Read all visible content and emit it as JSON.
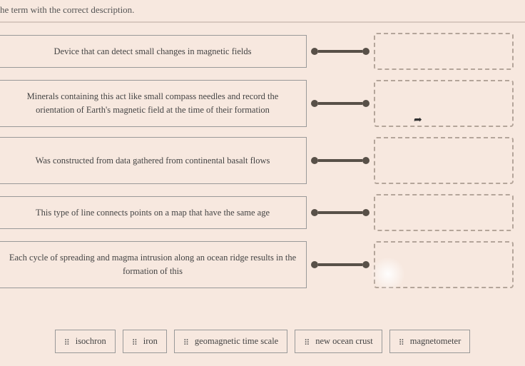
{
  "instruction": "he term with the correct description.",
  "descriptions": [
    "Device that can detect small changes in magnetic fields",
    "Minerals containing this act like small compass needles and record the orientation of Earth's magnetic field at the time of their formation",
    "Was constructed from data gathered from continental basalt flows",
    "This type of line connects points on a map that have the same age",
    "Each cycle of spreading and magma intrusion along an ocean ridge results in the formation of this"
  ],
  "terms": [
    "isochron",
    "iron",
    "geomagnetic time scale",
    "new ocean crust",
    "magnetometer"
  ],
  "row_tall": [
    false,
    true,
    true,
    false,
    true
  ]
}
